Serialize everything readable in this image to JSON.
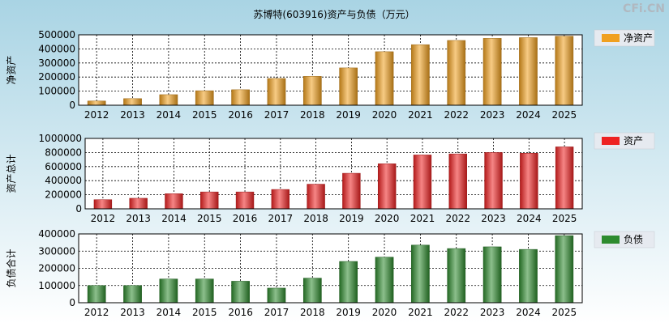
{
  "title": "苏博特(603916)资产与负债（万元）",
  "watermark": "CFi.CN",
  "colors": {
    "background_top": "#a9d4e4",
    "background_bottom": "#ffffff",
    "plot_background": "#ffffff",
    "grid": "#000000",
    "legend_box": "#e6eaf0"
  },
  "chart_data": [
    {
      "type": "bar",
      "title": "苏博特(603916)资产与负债（万元）",
      "ylabel": "净资产",
      "legend": "净资产",
      "color": "#f0a020",
      "categories": [
        "2012",
        "2013",
        "2014",
        "2015",
        "2016",
        "2017",
        "2018",
        "2019",
        "2020",
        "2021",
        "2022",
        "2023",
        "2024",
        "2025"
      ],
      "values": [
        30000,
        47000,
        75000,
        103000,
        110000,
        190000,
        205000,
        265000,
        380000,
        430000,
        460000,
        475000,
        480000,
        490000
      ],
      "ylim": [
        0,
        500000
      ],
      "yticks": [
        "0",
        "100000",
        "200000",
        "300000",
        "400000",
        "500000"
      ]
    },
    {
      "type": "bar",
      "ylabel": "资产总计",
      "legend": "资产",
      "color": "#ee2222",
      "categories": [
        "2012",
        "2013",
        "2014",
        "2015",
        "2016",
        "2017",
        "2018",
        "2019",
        "2020",
        "2021",
        "2022",
        "2023",
        "2024",
        "2025"
      ],
      "values": [
        130000,
        150000,
        215000,
        240000,
        240000,
        275000,
        350000,
        505000,
        640000,
        765000,
        780000,
        800000,
        790000,
        880000
      ],
      "ylim": [
        0,
        1000000
      ],
      "yticks": [
        "0",
        "200000",
        "400000",
        "600000",
        "800000",
        "1000000"
      ]
    },
    {
      "type": "bar",
      "ylabel": "负债合计",
      "legend": "负债",
      "color": "#2e8b2e",
      "categories": [
        "2012",
        "2013",
        "2014",
        "2015",
        "2016",
        "2017",
        "2018",
        "2019",
        "2020",
        "2021",
        "2022",
        "2023",
        "2024",
        "2025"
      ],
      "values": [
        100000,
        100000,
        138000,
        138000,
        125000,
        85000,
        143000,
        240000,
        265000,
        335000,
        315000,
        325000,
        310000,
        390000
      ],
      "ylim": [
        0,
        400000
      ],
      "yticks": [
        "0",
        "100000",
        "200000",
        "300000",
        "400000"
      ]
    }
  ]
}
